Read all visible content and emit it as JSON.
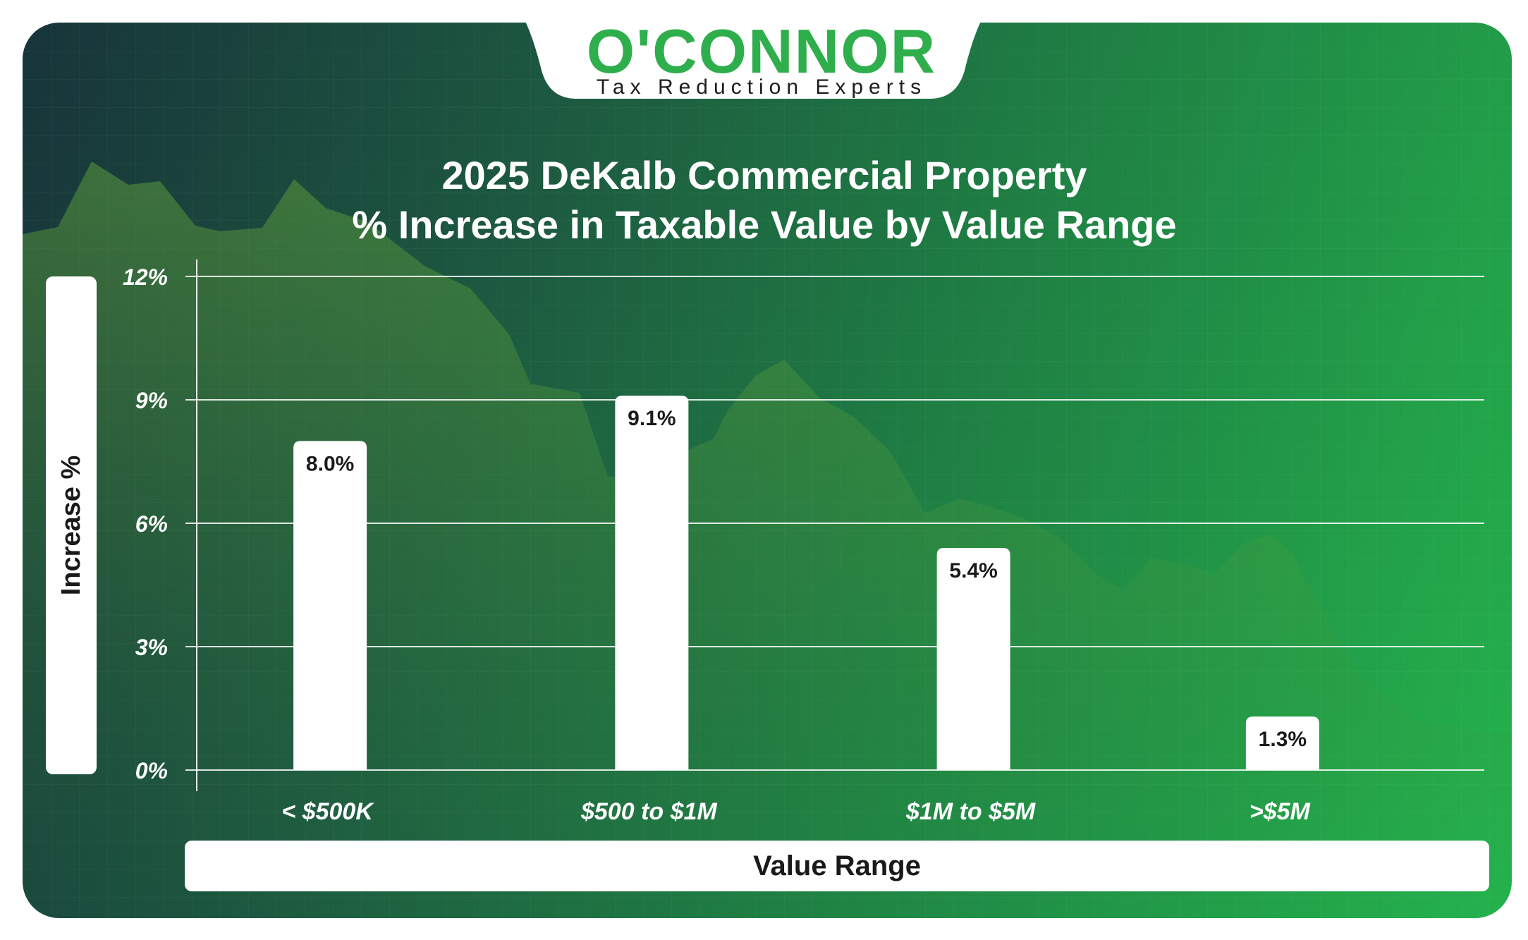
{
  "logo": {
    "wordmark": "O'CONNOR",
    "tagline": "Tax Reduction Experts"
  },
  "chart_data": {
    "type": "bar",
    "title": "2025 DeKalb Commercial Property",
    "subtitle": "% Increase in Taxable Value by Value Range",
    "xlabel": "Value Range",
    "ylabel": "Increase %",
    "categories": [
      "< $500K",
      "$500 to $1M",
      "$1M to $5M",
      ">$5M"
    ],
    "values": [
      8.0,
      9.1,
      5.4,
      1.3
    ],
    "data_labels": [
      "8.0%",
      "9.1%",
      "5.4%",
      "1.3%"
    ],
    "ylim": [
      0,
      12
    ],
    "yticks": [
      0,
      3,
      6,
      9,
      12
    ],
    "ytick_labels": [
      "0%",
      "3%",
      "6%",
      "9%",
      "12%"
    ],
    "grid": true,
    "legend": "none",
    "colors": {
      "bar": "#ffffff",
      "gridline": "#ffffff",
      "brand_green": "#2fae4c",
      "background_dark": "#17343a",
      "background_light": "#24b34d"
    }
  }
}
